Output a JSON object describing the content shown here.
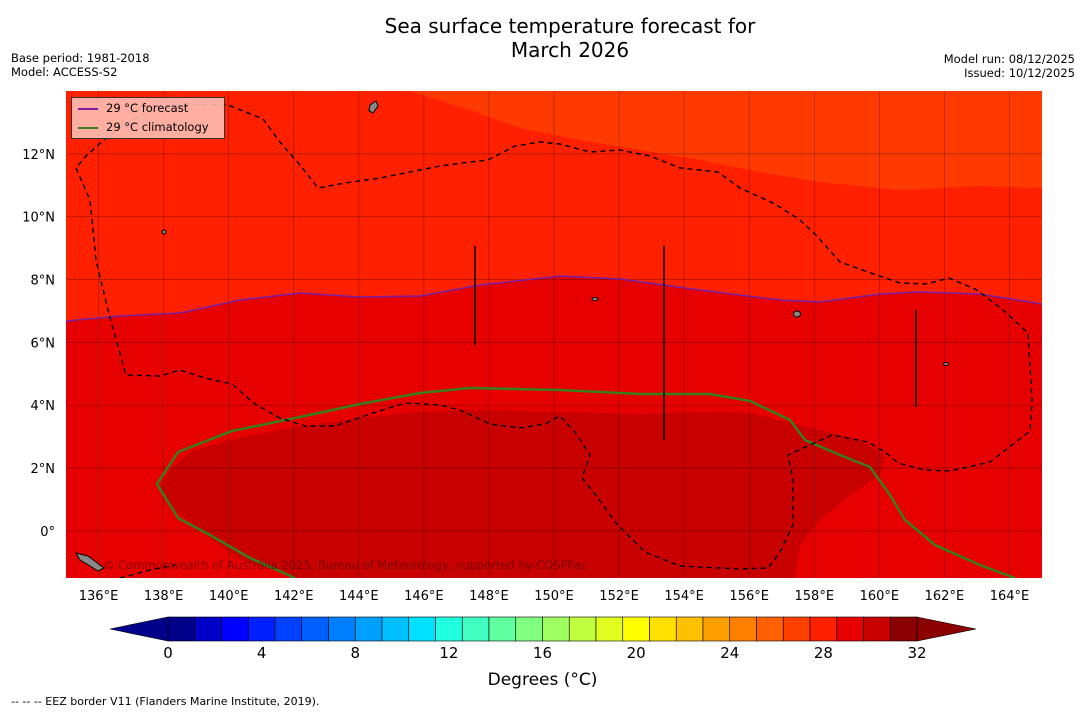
{
  "header": {
    "title_line1": "Sea surface temperature forecast for",
    "title_line2": "March 2026",
    "base_period": "Base period: 1981-2018",
    "model": "Model: ACCESS-S2",
    "model_run": "Model run: 08/12/2025",
    "issued": "Issued: 10/12/2025"
  },
  "map": {
    "lon_labels": [
      "136°E",
      "138°E",
      "140°E",
      "142°E",
      "144°E",
      "146°E",
      "148°E",
      "150°E",
      "152°E",
      "154°E",
      "156°E",
      "158°E",
      "160°E",
      "162°E",
      "164°E"
    ],
    "lat_labels": [
      "12°N",
      "10°N",
      "8°N",
      "6°N",
      "4°N",
      "2°N",
      "0°"
    ],
    "lon_range": [
      135,
      165
    ],
    "lat_range": [
      -1.5,
      14
    ],
    "credit": "© Commonwealth of Australia 2025, Bureau of Meteorology, supported by COSPPac",
    "colors": {
      "warm_28_29": "#ff2000",
      "hot_29_30": "#e60000",
      "hot_30_31": "#c80000",
      "cool_27_28": "#ff3a00",
      "forecast_line": "#7a1fa2",
      "climatology_line": "#3a7d1e",
      "eez_line": "#000000"
    }
  },
  "legend": {
    "forecast_label": "29 °C  forecast",
    "climatology_label": "29 °C  climatology"
  },
  "colorbar": {
    "tick_labels": [
      "0",
      "4",
      "8",
      "12",
      "16",
      "20",
      "24",
      "28",
      "32"
    ],
    "title": "Degrees (°C)",
    "colors": [
      "#00008b",
      "#0000c8",
      "#0000ff",
      "#0020ff",
      "#0040ff",
      "#0060ff",
      "#0080ff",
      "#00a0ff",
      "#00c0ff",
      "#00e0ff",
      "#20ffe0",
      "#40ffc0",
      "#60ffa0",
      "#80ff80",
      "#a0ff60",
      "#c0ff40",
      "#e0ff20",
      "#ffff00",
      "#ffe000",
      "#ffc000",
      "#ffa000",
      "#ff8000",
      "#ff6000",
      "#ff4000",
      "#ff2000",
      "#e60000",
      "#c80000",
      "#8b0000"
    ]
  },
  "footer": "-- -- -- EEZ border V11 (Flanders Marine Institute, 2019)."
}
